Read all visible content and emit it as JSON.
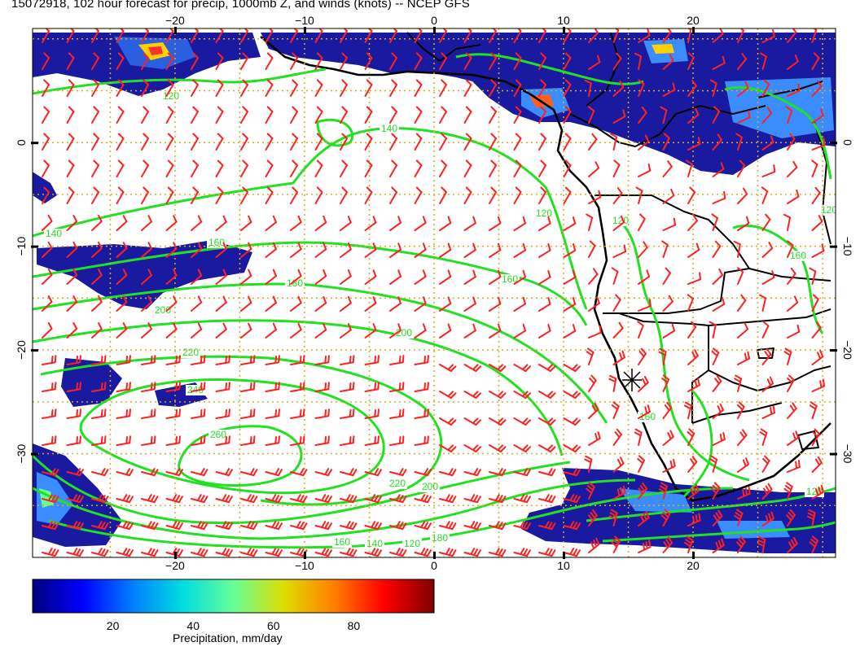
{
  "title": "15072918, 102 hour forecast for precip, 1000mb Z, and winds (knots) -- NCEP GFS",
  "map": {
    "lon_range": [
      -31,
      31
    ],
    "lat_range": [
      -40,
      11
    ],
    "lon_ticks": [
      -20,
      -10,
      0,
      10,
      20
    ],
    "lat_ticks": [
      0,
      -10,
      -20,
      -30
    ],
    "lon_tick_labels": [
      "−20",
      "−10",
      "0",
      "10",
      "20"
    ],
    "lat_tick_labels": [
      "0",
      "−10",
      "−20",
      "−30"
    ],
    "grid_lines": true,
    "wind_barb_color": "#ff2020",
    "contour_color": "#22e022",
    "coastline_color": "#000000",
    "contour_labels": [
      "120",
      "140",
      "140",
      "160",
      "180",
      "200",
      "200",
      "220",
      "240",
      "260",
      "220",
      "200",
      "180",
      "160",
      "140",
      "120",
      "160",
      "120",
      "120",
      "120",
      "160",
      "120",
      "160"
    ],
    "station_marker": "asterisk"
  },
  "colorbar": {
    "title": "Precipitation, mm/day",
    "range": [
      0,
      100
    ],
    "ticks": [
      20,
      40,
      60,
      80
    ],
    "tick_labels": [
      "20",
      "40",
      "60",
      "80"
    ],
    "stops": [
      "#00007f",
      "#0000ff",
      "#0080ff",
      "#00dede",
      "#66ff99",
      "#dede00",
      "#ff8000",
      "#ff0000",
      "#7f0000"
    ]
  }
}
